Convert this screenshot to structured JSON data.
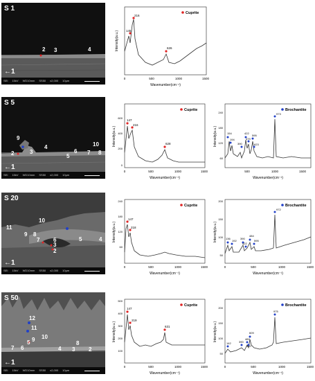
{
  "sem_footer": [
    "SEI",
    "15kV",
    "WD10mm",
    "SS50",
    "x2,000",
    "10μm"
  ],
  "units": {
    "intensity": "Intensity(a.u.)",
    "wavenumber": "Wavenumber(cm⁻¹)"
  },
  "legend": {
    "cuprite": "Cuprite",
    "brochantite": "Brochantite"
  },
  "colors": {
    "cuprite": "#e02424",
    "brochantite": "#2140c8",
    "spectrum": "#333333"
  },
  "rows": [
    {
      "sample": "S 1",
      "sem_labels": [
        "1",
        "2",
        "3",
        "4"
      ],
      "cuprite": {
        "ticks_y": [],
        "peaks": [
          "145",
          "216",
          "626"
        ]
      }
    },
    {
      "sample": "S 5",
      "sem_labels": [
        "1",
        "2",
        "3",
        "4",
        "5",
        "6",
        "7",
        "8",
        "9",
        "10"
      ],
      "cuprite": {
        "ticks_y": [
          "600",
          "400",
          "200",
          "0"
        ],
        "peaks": [
          "147",
          "216",
          "628"
        ]
      },
      "brochantite": {
        "ticks_y": [
          "240",
          "180",
          "120",
          "60"
        ],
        "peaks": [
          "154",
          "194",
          "390",
          "422",
          "479",
          "595",
          "623",
          "973"
        ]
      }
    },
    {
      "sample": "S 20",
      "sem_labels": [
        "1",
        "2",
        "3",
        "4",
        "5",
        "6",
        "7",
        "8",
        "9",
        "10",
        "11"
      ],
      "cuprite": {
        "ticks_y": [
          "240",
          "180",
          "120",
          "60"
        ],
        "peaks": [
          "147",
          "218"
        ]
      },
      "brochantite": {
        "ticks_y": [
          "200",
          "150",
          "100",
          "50"
        ],
        "peaks": [
          "136",
          "192",
          "390",
          "422",
          "484",
          "595",
          "972"
        ]
      }
    },
    {
      "sample": "S 50",
      "sem_labels": [
        "1",
        "2",
        "3",
        "4",
        "5",
        "6",
        "7",
        "8",
        "9",
        "10",
        "11",
        "12"
      ],
      "cuprite": {
        "ticks_y": [
          "500",
          "400",
          "300",
          "200",
          "100"
        ],
        "peaks": [
          "147",
          "219",
          "631"
        ]
      },
      "brochantite": {
        "ticks_y": [
          "200",
          "150",
          "100",
          "50"
        ],
        "peaks": [
          "142",
          "390",
          "482",
          "510",
          "609",
          "975"
        ]
      }
    }
  ],
  "x_ticks_cuprite": [
    "0",
    "500",
    "1000",
    "1500"
  ],
  "x_ticks_brochantite": [
    "500",
    "1000",
    "1500"
  ],
  "x_ticks_broch_s20": [
    "0",
    "500",
    "1000",
    "1500"
  ],
  "x_ticks_broch_s50": [
    "0",
    "500",
    "1000",
    "1500"
  ]
}
